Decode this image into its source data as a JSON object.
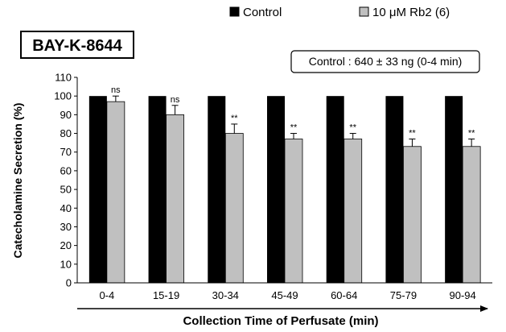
{
  "chart_data": {
    "type": "bar",
    "panel_label": "BAY-K-8644",
    "annotation": "Control : 640 ± 33 ng (0-4 min)",
    "xlabel": "Collection Time of Perfusate (min)",
    "ylabel": "Catecholamine Secretion (%)",
    "ylim": [
      0,
      110
    ],
    "yticks": [
      0,
      10,
      20,
      30,
      40,
      50,
      60,
      70,
      80,
      90,
      100,
      110
    ],
    "categories": [
      "0-4",
      "15-19",
      "30-34",
      "45-49",
      "60-64",
      "75-79",
      "90-94"
    ],
    "legend_position": "top",
    "grid": false,
    "series": [
      {
        "name": "Control",
        "color": "#000000",
        "values": [
          100,
          100,
          100,
          100,
          100,
          100,
          100
        ]
      },
      {
        "name": "10 μM Rb2 (6)",
        "color": "#c0c0c0",
        "values": [
          97,
          90,
          80,
          77,
          77,
          73,
          73
        ],
        "errors": [
          3,
          5,
          5,
          3,
          3,
          4,
          4
        ],
        "significance": [
          "ns",
          "ns",
          "**",
          "**",
          "**",
          "**",
          "**"
        ]
      }
    ]
  }
}
